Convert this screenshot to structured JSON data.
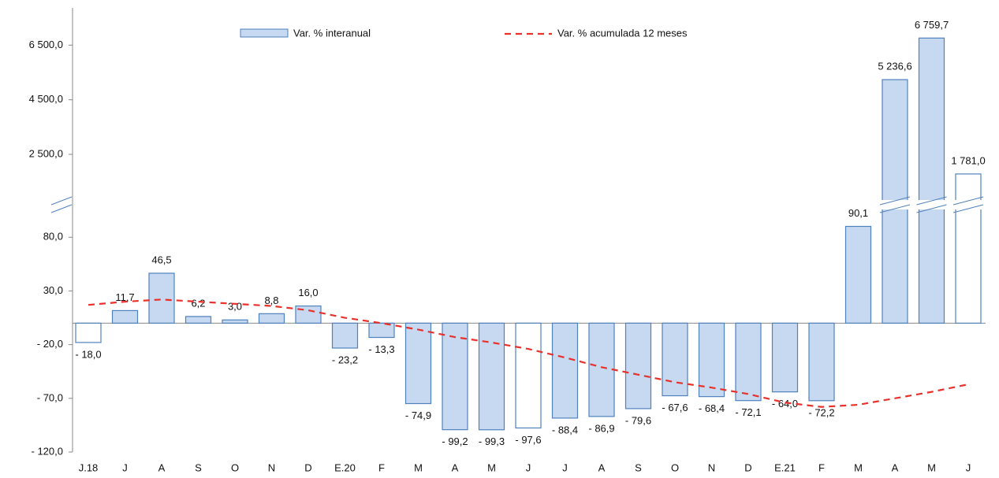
{
  "chart_data": {
    "type": "bar-line",
    "categories": [
      "J.18",
      "J",
      "A",
      "S",
      "O",
      "N",
      "D",
      "E.20",
      "F",
      "M",
      "A",
      "M",
      "J",
      "J",
      "A",
      "S",
      "O",
      "N",
      "D",
      "E.21",
      "F",
      "M",
      "A",
      "M",
      "J"
    ],
    "ylim": [
      -120,
      100
    ],
    "yticks": [
      {
        "value": -120,
        "label": "- 120,0"
      },
      {
        "value": -70,
        "label": "- 70,0"
      },
      {
        "value": -20,
        "label": "- 20,0"
      },
      {
        "value": 30,
        "label": "30,0"
      },
      {
        "value": 80,
        "label": "80,0"
      }
    ],
    "ylim_upper": [
      1000,
      7000
    ],
    "yticks_upper": [
      {
        "value": 2500,
        "label": "2 500,0"
      },
      {
        "value": 4500,
        "label": "4 500,0"
      },
      {
        "value": 6500,
        "label": "6 500,0"
      }
    ],
    "series": [
      {
        "name": "Var. % interanual",
        "type": "bar",
        "color": "#c6d9f0",
        "edge_color": "#4f81bd",
        "values": [
          -18.0,
          11.7,
          46.5,
          6.2,
          3.0,
          8.8,
          16.0,
          -23.2,
          -13.3,
          -74.9,
          -99.2,
          -99.3,
          -97.6,
          -88.4,
          -86.9,
          -79.6,
          -67.6,
          -68.4,
          -72.1,
          -64.0,
          -72.2,
          90.1,
          5236.6,
          6759.7,
          1781.0
        ],
        "value_labels": [
          "- 18,0",
          "11,7",
          "46,5",
          "6,2",
          "3,0",
          "8,8",
          "16,0",
          "- 23,2",
          "- 13,3",
          "- 74,9",
          "- 99,2",
          "- 99,3",
          "- 97,6",
          "- 88,4",
          "- 86,9",
          "- 79,6",
          "- 67,6",
          "- 68,4",
          "- 72,1",
          "- 64,0",
          "- 72,2",
          "90,1",
          "5 236,6",
          "6 759,7",
          "1 781,0"
        ],
        "fills": [
          "#ffffff",
          "#c6d9f0",
          "#c6d9f0",
          "#c6d9f0",
          "#c6d9f0",
          "#c6d9f0",
          "#c6d9f0",
          "#c6d9f0",
          "#c6d9f0",
          "#c6d9f0",
          "#c6d9f0",
          "#c6d9f0",
          "#ffffff",
          "#c6d9f0",
          "#c6d9f0",
          "#c6d9f0",
          "#c6d9f0",
          "#c6d9f0",
          "#c6d9f0",
          "#c6d9f0",
          "#c6d9f0",
          "#c6d9f0",
          "#c6d9f0",
          "#c6d9f0",
          "#ffffff"
        ]
      },
      {
        "name": "Var. % acumulada 12 meses",
        "type": "line",
        "color": "#e8312b",
        "dashed": true,
        "values": [
          17,
          20,
          22,
          20,
          18,
          16,
          12,
          5,
          0,
          -6,
          -13,
          -18,
          -24,
          -32,
          -41,
          -48,
          -55,
          -60,
          -66,
          -74,
          -78,
          -76,
          -70,
          -64,
          -57
        ]
      }
    ]
  }
}
